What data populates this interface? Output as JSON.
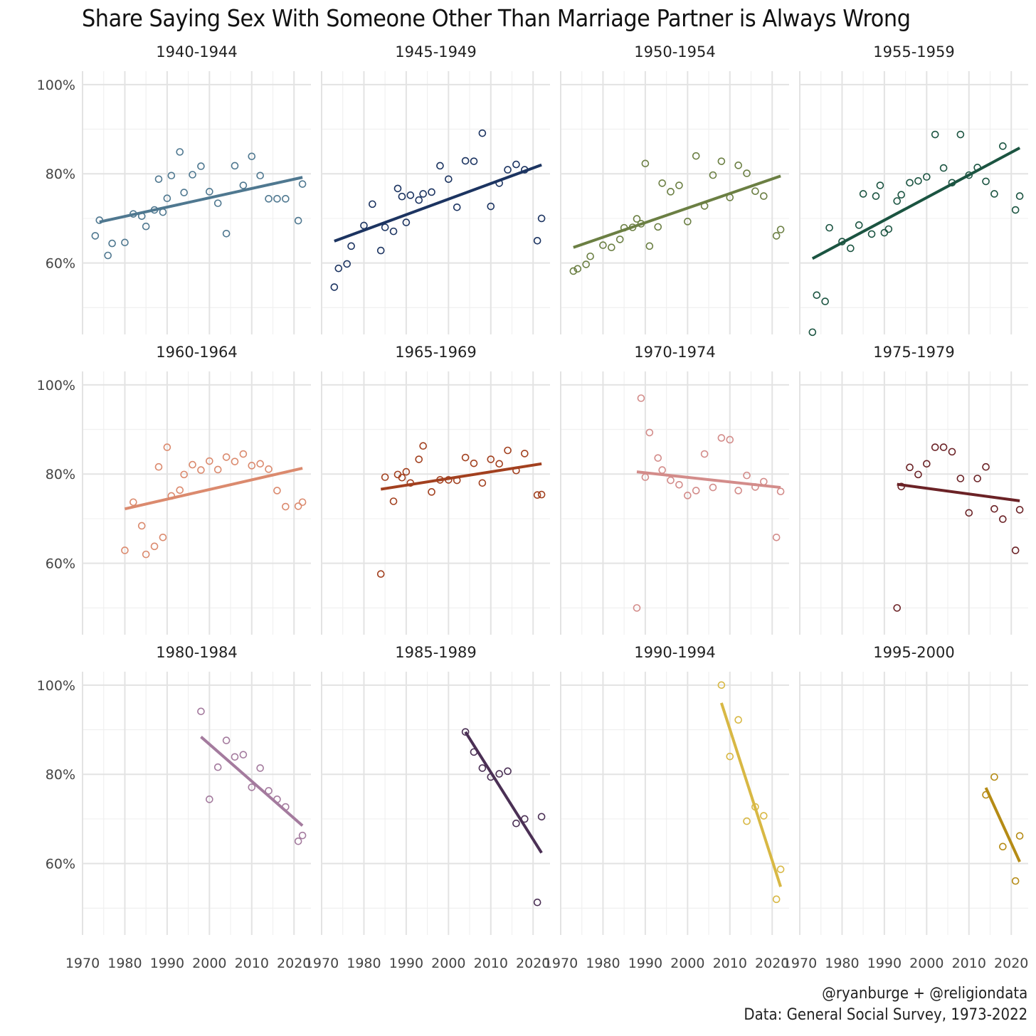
{
  "title": "Share Saying Sex With Someone Other Than Marriage Partner is Always Wrong",
  "caption": {
    "line1": "@ryanburge + @religiondata",
    "line2": "Data: General Social Survey, 1973-2022"
  },
  "chart_data": {
    "type": "scatter",
    "facet_layout": "3 rows x 4 columns",
    "xlim": [
      1970,
      2024
    ],
    "ylim": [
      44,
      103
    ],
    "x_ticks": [
      1970,
      1980,
      1990,
      2000,
      2010,
      2020
    ],
    "x_tick_labels": [
      "1970",
      "1980",
      "1990",
      "2000",
      "2010",
      "2020"
    ],
    "y_ticks": [
      60,
      80,
      100
    ],
    "y_tick_labels": [
      "60%",
      "80%",
      "100%"
    ],
    "grid": true,
    "legend": "none",
    "facets": [
      {
        "name": "1940-1944",
        "color": "#4f7890",
        "trend": [
          [
            1974,
            69.2
          ],
          [
            2022,
            79.2
          ]
        ],
        "points": [
          [
            1973,
            66.1
          ],
          [
            1974,
            69.6
          ],
          [
            1976,
            61.7
          ],
          [
            1977,
            64.4
          ],
          [
            1980,
            64.6
          ],
          [
            1982,
            71.0
          ],
          [
            1984,
            70.5
          ],
          [
            1985,
            68.2
          ],
          [
            1987,
            71.9
          ],
          [
            1988,
            78.8
          ],
          [
            1989,
            71.4
          ],
          [
            1990,
            74.5
          ],
          [
            1991,
            79.6
          ],
          [
            1993,
            84.9
          ],
          [
            1994,
            75.8
          ],
          [
            1996,
            79.8
          ],
          [
            1998,
            81.7
          ],
          [
            2000,
            76.0
          ],
          [
            2002,
            73.4
          ],
          [
            2004,
            66.6
          ],
          [
            2006,
            81.8
          ],
          [
            2008,
            77.4
          ],
          [
            2010,
            83.9
          ],
          [
            2012,
            79.6
          ],
          [
            2014,
            74.4
          ],
          [
            2016,
            74.4
          ],
          [
            2018,
            74.4
          ],
          [
            2021,
            69.5
          ],
          [
            2022,
            77.7
          ]
        ]
      },
      {
        "name": "1945-1949",
        "color": "#1c3461",
        "trend": [
          [
            1973,
            64.9
          ],
          [
            2022,
            82.0
          ]
        ],
        "points": [
          [
            1973,
            54.6
          ],
          [
            1974,
            58.8
          ],
          [
            1976,
            59.8
          ],
          [
            1977,
            63.8
          ],
          [
            1980,
            68.4
          ],
          [
            1982,
            73.2
          ],
          [
            1984,
            62.8
          ],
          [
            1985,
            68.0
          ],
          [
            1987,
            67.1
          ],
          [
            1988,
            76.7
          ],
          [
            1989,
            74.9
          ],
          [
            1990,
            69.1
          ],
          [
            1991,
            75.2
          ],
          [
            1993,
            74.1
          ],
          [
            1994,
            75.5
          ],
          [
            1996,
            75.9
          ],
          [
            1998,
            81.8
          ],
          [
            2000,
            78.8
          ],
          [
            2002,
            72.5
          ],
          [
            2004,
            82.9
          ],
          [
            2006,
            82.8
          ],
          [
            2008,
            89.1
          ],
          [
            2010,
            72.7
          ],
          [
            2012,
            77.9
          ],
          [
            2014,
            80.9
          ],
          [
            2016,
            82.1
          ],
          [
            2018,
            80.9
          ],
          [
            2021,
            65.0
          ],
          [
            2022,
            70.0
          ]
        ]
      },
      {
        "name": "1950-1954",
        "color": "#6b7f43",
        "trend": [
          [
            1973,
            63.5
          ],
          [
            2022,
            79.5
          ]
        ],
        "points": [
          [
            1973,
            58.2
          ],
          [
            1974,
            58.7
          ],
          [
            1976,
            59.7
          ],
          [
            1977,
            61.5
          ],
          [
            1980,
            64.0
          ],
          [
            1982,
            63.5
          ],
          [
            1984,
            65.3
          ],
          [
            1985,
            67.9
          ],
          [
            1987,
            68.0
          ],
          [
            1988,
            69.9
          ],
          [
            1989,
            68.8
          ],
          [
            1990,
            82.3
          ],
          [
            1991,
            63.8
          ],
          [
            1993,
            68.1
          ],
          [
            1994,
            77.9
          ],
          [
            1996,
            76.0
          ],
          [
            1998,
            77.4
          ],
          [
            2000,
            69.3
          ],
          [
            2002,
            84.0
          ],
          [
            2004,
            72.8
          ],
          [
            2006,
            79.7
          ],
          [
            2008,
            82.8
          ],
          [
            2010,
            74.7
          ],
          [
            2012,
            81.9
          ],
          [
            2014,
            80.1
          ],
          [
            2016,
            76.1
          ],
          [
            2018,
            75.0
          ],
          [
            2021,
            66.1
          ],
          [
            2022,
            67.5
          ]
        ]
      },
      {
        "name": "1955-1959",
        "color": "#1b5441",
        "trend": [
          [
            1973,
            61.0
          ],
          [
            2022,
            85.8
          ]
        ],
        "points": [
          [
            1973,
            44.5
          ],
          [
            1974,
            52.8
          ],
          [
            1976,
            51.4
          ],
          [
            1977,
            67.9
          ],
          [
            1980,
            64.8
          ],
          [
            1982,
            63.3
          ],
          [
            1984,
            68.5
          ],
          [
            1985,
            75.5
          ],
          [
            1987,
            66.5
          ],
          [
            1988,
            75.0
          ],
          [
            1989,
            77.4
          ],
          [
            1990,
            66.8
          ],
          [
            1991,
            67.6
          ],
          [
            1993,
            73.9
          ],
          [
            1994,
            75.3
          ],
          [
            1996,
            78.0
          ],
          [
            1998,
            78.4
          ],
          [
            2000,
            79.3
          ],
          [
            2002,
            88.8
          ],
          [
            2004,
            81.3
          ],
          [
            2006,
            78.0
          ],
          [
            2008,
            88.8
          ],
          [
            2010,
            79.7
          ],
          [
            2012,
            81.4
          ],
          [
            2014,
            78.3
          ],
          [
            2016,
            75.5
          ],
          [
            2018,
            86.2
          ],
          [
            2021,
            71.9
          ],
          [
            2022,
            75.0
          ]
        ]
      },
      {
        "name": "1960-1964",
        "color": "#db8a6e",
        "trend": [
          [
            1980,
            72.2
          ],
          [
            2022,
            81.3
          ]
        ],
        "points": [
          [
            1980,
            62.9
          ],
          [
            1982,
            73.7
          ],
          [
            1984,
            68.4
          ],
          [
            1985,
            62.0
          ],
          [
            1987,
            63.8
          ],
          [
            1988,
            81.6
          ],
          [
            1989,
            65.8
          ],
          [
            1990,
            86.0
          ],
          [
            1991,
            75.1
          ],
          [
            1993,
            76.4
          ],
          [
            1994,
            79.9
          ],
          [
            1996,
            82.1
          ],
          [
            1998,
            80.9
          ],
          [
            2000,
            82.9
          ],
          [
            2002,
            81.0
          ],
          [
            2004,
            83.8
          ],
          [
            2006,
            82.8
          ],
          [
            2008,
            84.5
          ],
          [
            2010,
            81.9
          ],
          [
            2012,
            82.3
          ],
          [
            2014,
            81.1
          ],
          [
            2016,
            76.3
          ],
          [
            2018,
            72.7
          ],
          [
            2021,
            72.8
          ],
          [
            2022,
            73.7
          ]
        ]
      },
      {
        "name": "1965-1969",
        "color": "#a2401f",
        "trend": [
          [
            1984,
            76.6
          ],
          [
            2022,
            82.3
          ]
        ],
        "points": [
          [
            1984,
            57.6
          ],
          [
            1985,
            79.3
          ],
          [
            1987,
            73.9
          ],
          [
            1988,
            79.9
          ],
          [
            1989,
            79.2
          ],
          [
            1990,
            80.5
          ],
          [
            1991,
            78.0
          ],
          [
            1993,
            83.3
          ],
          [
            1994,
            86.3
          ],
          [
            1996,
            76.0
          ],
          [
            1998,
            78.7
          ],
          [
            2000,
            78.7
          ],
          [
            2002,
            78.6
          ],
          [
            2004,
            83.7
          ],
          [
            2006,
            82.4
          ],
          [
            2008,
            78.0
          ],
          [
            2010,
            83.3
          ],
          [
            2012,
            82.3
          ],
          [
            2014,
            85.3
          ],
          [
            2016,
            80.8
          ],
          [
            2018,
            84.6
          ],
          [
            2021,
            75.3
          ],
          [
            2022,
            75.4
          ]
        ]
      },
      {
        "name": "1970-1974",
        "color": "#d38c8a",
        "trend": [
          [
            1988,
            80.5
          ],
          [
            2022,
            77.0
          ]
        ],
        "points": [
          [
            1988,
            50.0
          ],
          [
            1989,
            97.0
          ],
          [
            1990,
            79.3
          ],
          [
            1991,
            89.3
          ],
          [
            1993,
            83.6
          ],
          [
            1994,
            80.9
          ],
          [
            1996,
            78.6
          ],
          [
            1998,
            77.6
          ],
          [
            2000,
            75.2
          ],
          [
            2002,
            76.3
          ],
          [
            2004,
            84.5
          ],
          [
            2006,
            77.0
          ],
          [
            2008,
            88.1
          ],
          [
            2010,
            87.7
          ],
          [
            2012,
            76.3
          ],
          [
            2014,
            79.7
          ],
          [
            2016,
            77.1
          ],
          [
            2018,
            78.3
          ],
          [
            2021,
            65.8
          ],
          [
            2022,
            76.1
          ]
        ]
      },
      {
        "name": "1975-1979",
        "color": "#6b2226",
        "trend": [
          [
            1993,
            77.7
          ],
          [
            2022,
            74.0
          ]
        ],
        "points": [
          [
            1993,
            50.0
          ],
          [
            1994,
            77.2
          ],
          [
            1996,
            81.5
          ],
          [
            1998,
            79.9
          ],
          [
            2000,
            82.3
          ],
          [
            2002,
            86.0
          ],
          [
            2004,
            86.0
          ],
          [
            2006,
            85.0
          ],
          [
            2008,
            79.0
          ],
          [
            2010,
            71.3
          ],
          [
            2012,
            79.0
          ],
          [
            2014,
            81.6
          ],
          [
            2016,
            72.2
          ],
          [
            2018,
            69.9
          ],
          [
            2021,
            62.9
          ],
          [
            2022,
            72.0
          ]
        ]
      },
      {
        "name": "1980-1984",
        "color": "#a47b9e",
        "trend": [
          [
            1998,
            88.4
          ],
          [
            2022,
            68.5
          ]
        ],
        "points": [
          [
            1998,
            94.1
          ],
          [
            2000,
            74.4
          ],
          [
            2002,
            81.6
          ],
          [
            2004,
            87.6
          ],
          [
            2006,
            83.9
          ],
          [
            2008,
            84.4
          ],
          [
            2010,
            77.1
          ],
          [
            2012,
            81.4
          ],
          [
            2014,
            76.3
          ],
          [
            2016,
            74.4
          ],
          [
            2018,
            72.7
          ],
          [
            2021,
            65.0
          ],
          [
            2022,
            66.3
          ]
        ]
      },
      {
        "name": "1985-1989",
        "color": "#4b3055",
        "trend": [
          [
            2004,
            89.5
          ],
          [
            2022,
            62.4
          ]
        ],
        "points": [
          [
            2004,
            89.5
          ],
          [
            2006,
            85.0
          ],
          [
            2008,
            81.4
          ],
          [
            2010,
            79.4
          ],
          [
            2012,
            80.1
          ],
          [
            2014,
            80.7
          ],
          [
            2016,
            69.0
          ],
          [
            2018,
            70.0
          ],
          [
            2021,
            51.3
          ],
          [
            2022,
            70.5
          ]
        ]
      },
      {
        "name": "1990-1994",
        "color": "#d8b844",
        "trend": [
          [
            2008,
            96.0
          ],
          [
            2022,
            54.8
          ]
        ],
        "points": [
          [
            2008,
            100.0
          ],
          [
            2010,
            84.0
          ],
          [
            2012,
            92.2
          ],
          [
            2014,
            69.5
          ],
          [
            2016,
            72.7
          ],
          [
            2018,
            70.7
          ],
          [
            2021,
            52.0
          ],
          [
            2022,
            58.7
          ]
        ]
      },
      {
        "name": "1995-2000",
        "color": "#b58b15",
        "trend": [
          [
            2014,
            77.0
          ],
          [
            2022,
            60.4
          ]
        ],
        "points": [
          [
            2014,
            75.4
          ],
          [
            2016,
            79.4
          ],
          [
            2018,
            63.8
          ],
          [
            2021,
            56.1
          ],
          [
            2022,
            66.2
          ]
        ]
      }
    ]
  }
}
